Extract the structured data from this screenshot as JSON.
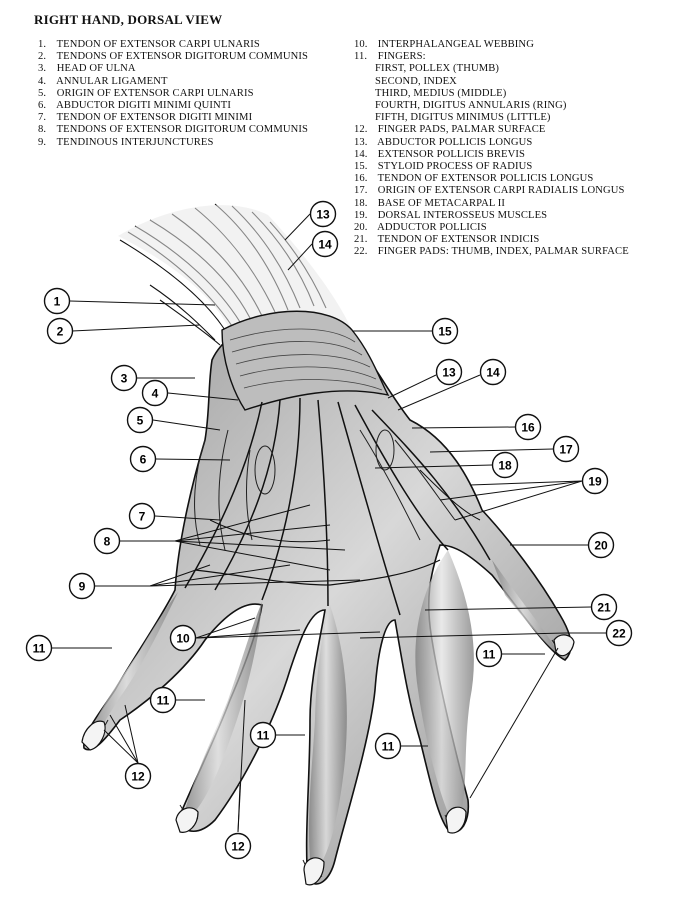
{
  "title": "RIGHT HAND, DORSAL VIEW",
  "legend_left": [
    {
      "num": "1.",
      "text": "TENDON OF EXTENSOR CARPI ULNARIS"
    },
    {
      "num": "2.",
      "text": "TENDONS OF EXTENSOR DIGITORUM COMMUNIS"
    },
    {
      "num": "3.",
      "text": "HEAD OF ULNA"
    },
    {
      "num": "4.",
      "text": "ANNULAR LIGAMENT"
    },
    {
      "num": "5.",
      "text": "ORIGIN OF EXTENSOR CARPI ULNARIS"
    },
    {
      "num": "6.",
      "text": "ABDUCTOR DIGITI MINIMI QUINTI"
    },
    {
      "num": "7.",
      "text": "TENDON OF EXTENSOR DIGITI MINIMI"
    },
    {
      "num": "8.",
      "text": "TENDONS OF EXTENSOR DIGITORUM COMMUNIS"
    },
    {
      "num": "9.",
      "text": "TENDINOUS INTERJUNCTURES"
    }
  ],
  "legend_right": [
    {
      "num": "10.",
      "text": "INTERPHALANGEAL WEBBING"
    },
    {
      "num": "11.",
      "text": "FINGERS:"
    },
    {
      "num": "",
      "text": "FIRST, POLLEX (THUMB)",
      "sub": true
    },
    {
      "num": "",
      "text": "SECOND, INDEX",
      "sub": true
    },
    {
      "num": "",
      "text": "THIRD, MEDIUS (MIDDLE)",
      "sub": true
    },
    {
      "num": "",
      "text": "FOURTH, DIGITUS ANNULARIS (RING)",
      "sub": true
    },
    {
      "num": "",
      "text": "FIFTH, DIGITUS MINIMUS (LITTLE)",
      "sub": true
    },
    {
      "num": "12.",
      "text": "FINGER PADS, PALMAR SURFACE"
    },
    {
      "num": "13.",
      "text": "ABDUCTOR POLLICIS LONGUS"
    },
    {
      "num": "14.",
      "text": "EXTENSOR POLLICIS BREVIS"
    },
    {
      "num": "15.",
      "text": "STYLOID PROCESS OF RADIUS"
    },
    {
      "num": "16.",
      "text": "TENDON OF EXTENSOR POLLICIS LONGUS"
    },
    {
      "num": "17.",
      "text": "ORIGIN OF EXTENSOR CARPI RADIALIS LONGUS"
    },
    {
      "num": "18.",
      "text": "BASE OF METACARPAL II"
    },
    {
      "num": "19.",
      "text": "DORSAL INTEROSSEUS MUSCLES"
    },
    {
      "num": "20.",
      "text": "ADDUCTOR POLLICIS"
    },
    {
      "num": "21.",
      "text": "TENDON OF EXTENSOR INDICIS"
    },
    {
      "num": "22.",
      "text": "FINGER PADS: THUMB, INDEX, PALMAR SURFACE"
    }
  ],
  "callouts": [
    {
      "label": "1"
    },
    {
      "label": "2"
    },
    {
      "label": "3"
    },
    {
      "label": "4"
    },
    {
      "label": "5"
    },
    {
      "label": "6"
    },
    {
      "label": "7"
    },
    {
      "label": "8"
    },
    {
      "label": "9"
    },
    {
      "label": "10"
    },
    {
      "label": "11"
    },
    {
      "label": "11"
    },
    {
      "label": "11"
    },
    {
      "label": "11"
    },
    {
      "label": "11"
    },
    {
      "label": "12"
    },
    {
      "label": "12"
    },
    {
      "label": "13"
    },
    {
      "label": "14"
    },
    {
      "label": "13"
    },
    {
      "label": "14"
    },
    {
      "label": "15"
    },
    {
      "label": "16"
    },
    {
      "label": "17"
    },
    {
      "label": "18"
    },
    {
      "label": "19"
    },
    {
      "label": "20"
    },
    {
      "label": "21"
    },
    {
      "label": "22"
    }
  ],
  "colors": {
    "ink": "#111111",
    "paper": "#ffffff",
    "shade": "#6a6a6a",
    "light": "#cfcfcf"
  }
}
